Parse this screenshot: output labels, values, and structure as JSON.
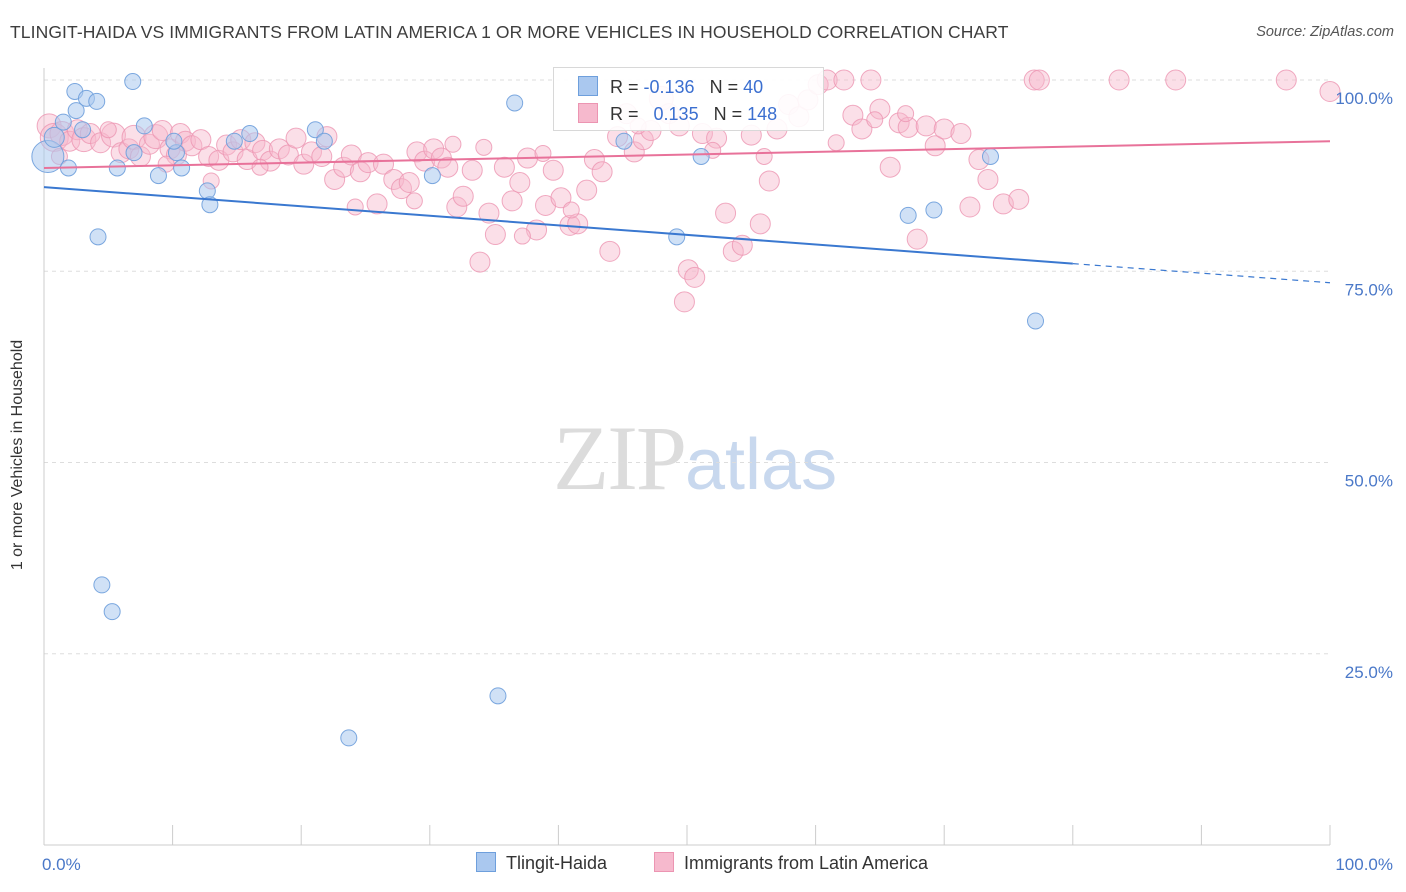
{
  "header": {
    "title": "TLINGIT-HAIDA VS IMMIGRANTS FROM LATIN AMERICA 1 OR MORE VEHICLES IN HOUSEHOLD CORRELATION CHART",
    "source": "Source: ZipAtlas.com"
  },
  "watermark": {
    "zip": "ZIP",
    "atlas": "atlas"
  },
  "legend": {
    "blue": {
      "r_label": "R = ",
      "r_value": "-0.136",
      "n_label": "N = ",
      "n_value": "40"
    },
    "pink": {
      "r_label": "R = ",
      "r_value": "0.135",
      "n_label": "N = ",
      "n_value": "148"
    }
  },
  "bottom_legend": {
    "blue": "Tlingit-Haida",
    "pink": "Immigrants from Latin America"
  },
  "colors": {
    "blue_fill": "#aac8ef",
    "blue_stroke": "#6e9fdc",
    "blue_line": "#3a78d0",
    "pink_fill": "#f6b9cd",
    "pink_stroke": "#ec95b2",
    "pink_line": "#e8729a",
    "grid": "#dddddd",
    "axis_text": "#4a78c8"
  },
  "chart_data": {
    "type": "scatter",
    "title": "TLINGIT-HAIDA VS IMMIGRANTS FROM LATIN AMERICA 1 OR MORE VEHICLES IN HOUSEHOLD CORRELATION CHART",
    "xlabel": "",
    "ylabel": "1 or more Vehicles in Household",
    "xlim": [
      0,
      100
    ],
    "ylim": [
      0,
      103
    ],
    "x_tick_labels": [
      "0.0%",
      "100.0%"
    ],
    "y_ticks": [
      25,
      50,
      75,
      100
    ],
    "y_tick_labels": [
      "25.0%",
      "50.0%",
      "75.0%",
      "100.0%"
    ],
    "grid": true,
    "series": [
      {
        "name": "Tlingit-Haida",
        "r": -0.136,
        "n": 40,
        "trend": {
          "x0": 0,
          "y0": 86.0,
          "x1": 80,
          "y1": 76.0,
          "dashed_to_x": 100,
          "dashed_to_y": 73.5
        },
        "points": [
          [
            0.3,
            90.0,
            16
          ],
          [
            0.8,
            92.5,
            10
          ],
          [
            1.5,
            94.5,
            8
          ],
          [
            1.9,
            88.5,
            8
          ],
          [
            2.4,
            98.5,
            8
          ],
          [
            2.5,
            96.0,
            8
          ],
          [
            3.3,
            97.6,
            8
          ],
          [
            3.0,
            93.5,
            8
          ],
          [
            4.1,
            97.2,
            8
          ],
          [
            6.9,
            99.8,
            8
          ],
          [
            4.2,
            79.5,
            8
          ],
          [
            7.0,
            90.5,
            8
          ],
          [
            5.7,
            88.5,
            8
          ],
          [
            7.8,
            94.0,
            8
          ],
          [
            8.9,
            87.5,
            8
          ],
          [
            10.3,
            90.5,
            8
          ],
          [
            10.7,
            88.5,
            8
          ],
          [
            10.1,
            92.0,
            8
          ],
          [
            12.7,
            85.5,
            8
          ],
          [
            12.9,
            83.7,
            8
          ],
          [
            14.8,
            92.0,
            8
          ],
          [
            16.0,
            93.0,
            8
          ],
          [
            21.1,
            93.5,
            8
          ],
          [
            21.8,
            92.0,
            8
          ],
          [
            30.2,
            87.5,
            8
          ],
          [
            36.6,
            97.0,
            8
          ],
          [
            45.1,
            92.0,
            8
          ],
          [
            49.2,
            79.5,
            8
          ],
          [
            51.1,
            90.0,
            8
          ],
          [
            67.2,
            82.3,
            8
          ],
          [
            69.2,
            83.0,
            8
          ],
          [
            73.6,
            90.0,
            8
          ],
          [
            77.1,
            68.5,
            8
          ],
          [
            4.5,
            34.0,
            8
          ],
          [
            5.3,
            30.5,
            8
          ],
          [
            35.3,
            19.5,
            8
          ],
          [
            23.7,
            14.0,
            8
          ]
        ]
      },
      {
        "name": "Immigrants from Latin America",
        "r": 0.135,
        "n": 148,
        "trend": {
          "x0": 0,
          "y0": 88.5,
          "x1": 100,
          "y1": 92.0
        },
        "points": [
          [
            0.4,
            94.0,
            12
          ],
          [
            0.8,
            92.5,
            14
          ],
          [
            1.4,
            93.0,
            12
          ],
          [
            2.0,
            92.0,
            10
          ],
          [
            2.6,
            93.5,
            10
          ],
          [
            3.1,
            92.2,
            12
          ],
          [
            3.6,
            93.0,
            10
          ],
          [
            4.4,
            91.8,
            10
          ],
          [
            5.4,
            92.8,
            12
          ],
          [
            6.0,
            90.5,
            10
          ],
          [
            6.6,
            91.0,
            10
          ],
          [
            7.0,
            92.5,
            12
          ],
          [
            7.5,
            90.0,
            10
          ],
          [
            8.2,
            91.6,
            10
          ],
          [
            8.7,
            92.6,
            12
          ],
          [
            9.2,
            93.4,
            10
          ],
          [
            9.8,
            91.0,
            10
          ],
          [
            10.3,
            90.2,
            10
          ],
          [
            10.6,
            93.0,
            10
          ],
          [
            11.0,
            92.0,
            10
          ],
          [
            11.5,
            91.4,
            10
          ],
          [
            12.2,
            92.2,
            10
          ],
          [
            12.8,
            90.0,
            10
          ],
          [
            13.6,
            89.5,
            10
          ],
          [
            14.2,
            91.5,
            10
          ],
          [
            14.7,
            90.6,
            10
          ],
          [
            15.3,
            92.2,
            10
          ],
          [
            15.8,
            89.6,
            10
          ],
          [
            16.4,
            91.8,
            10
          ],
          [
            17.0,
            90.8,
            10
          ],
          [
            17.6,
            89.4,
            10
          ],
          [
            18.3,
            91.0,
            10
          ],
          [
            19.0,
            90.2,
            10
          ],
          [
            19.6,
            92.4,
            10
          ],
          [
            20.2,
            89.0,
            10
          ],
          [
            20.8,
            90.6,
            10
          ],
          [
            21.6,
            90.0,
            10
          ],
          [
            22.0,
            92.6,
            10
          ],
          [
            22.6,
            87.0,
            10
          ],
          [
            23.3,
            88.6,
            10
          ],
          [
            23.9,
            90.2,
            10
          ],
          [
            24.6,
            88.0,
            10
          ],
          [
            25.2,
            89.2,
            10
          ],
          [
            25.9,
            83.8,
            10
          ],
          [
            26.4,
            89.0,
            10
          ],
          [
            27.2,
            87.0,
            10
          ],
          [
            27.8,
            85.8,
            10
          ],
          [
            28.4,
            86.6,
            10
          ],
          [
            29.0,
            90.6,
            10
          ],
          [
            29.6,
            89.4,
            10
          ],
          [
            30.3,
            91.0,
            10
          ],
          [
            30.9,
            89.8,
            10
          ],
          [
            31.4,
            88.6,
            10
          ],
          [
            32.1,
            83.4,
            10
          ],
          [
            32.6,
            84.8,
            10
          ],
          [
            33.3,
            88.2,
            10
          ],
          [
            33.9,
            76.2,
            10
          ],
          [
            34.6,
            82.6,
            10
          ],
          [
            35.1,
            79.8,
            10
          ],
          [
            35.8,
            88.6,
            10
          ],
          [
            36.4,
            84.2,
            10
          ],
          [
            37.0,
            86.6,
            10
          ],
          [
            37.6,
            89.8,
            10
          ],
          [
            38.3,
            80.4,
            10
          ],
          [
            39.0,
            83.6,
            10
          ],
          [
            39.6,
            88.2,
            10
          ],
          [
            40.2,
            84.6,
            10
          ],
          [
            40.9,
            81.0,
            10
          ],
          [
            41.5,
            81.2,
            10
          ],
          [
            42.2,
            85.6,
            10
          ],
          [
            42.8,
            89.6,
            10
          ],
          [
            43.4,
            88.0,
            10
          ],
          [
            44.0,
            77.6,
            10
          ],
          [
            44.6,
            92.6,
            10
          ],
          [
            45.3,
            95.6,
            10
          ],
          [
            45.9,
            90.6,
            10
          ],
          [
            46.6,
            92.2,
            10
          ],
          [
            47.2,
            93.4,
            10
          ],
          [
            48.0,
            97.6,
            12
          ],
          [
            48.6,
            95.6,
            10
          ],
          [
            49.4,
            94.0,
            10
          ],
          [
            50.1,
            75.2,
            10
          ],
          [
            50.6,
            74.2,
            10
          ],
          [
            49.8,
            71.0,
            10
          ],
          [
            51.2,
            93.0,
            10
          ],
          [
            52.3,
            92.4,
            10
          ],
          [
            53.0,
            82.6,
            10
          ],
          [
            53.6,
            77.6,
            10
          ],
          [
            54.3,
            78.4,
            10
          ],
          [
            55.0,
            92.8,
            10
          ],
          [
            55.7,
            81.2,
            10
          ],
          [
            56.4,
            86.8,
            10
          ],
          [
            57.0,
            93.6,
            10
          ],
          [
            57.9,
            96.8,
            10
          ],
          [
            58.7,
            95.2,
            10
          ],
          [
            59.4,
            97.4,
            10
          ],
          [
            60.2,
            99.4,
            10
          ],
          [
            60.9,
            100.0,
            10
          ],
          [
            62.2,
            100.0,
            10
          ],
          [
            62.9,
            95.4,
            10
          ],
          [
            63.6,
            93.6,
            10
          ],
          [
            64.3,
            100.0,
            10
          ],
          [
            65.0,
            96.2,
            10
          ],
          [
            65.8,
            88.6,
            10
          ],
          [
            66.5,
            94.4,
            10
          ],
          [
            67.2,
            93.8,
            10
          ],
          [
            67.9,
            79.2,
            10
          ],
          [
            68.6,
            94.0,
            10
          ],
          [
            69.3,
            91.4,
            10
          ],
          [
            70.0,
            93.6,
            10
          ],
          [
            71.3,
            93.0,
            10
          ],
          [
            72.0,
            83.4,
            10
          ],
          [
            72.7,
            89.6,
            10
          ],
          [
            73.4,
            87.0,
            10
          ],
          [
            74.6,
            83.8,
            10
          ],
          [
            75.8,
            84.4,
            10
          ],
          [
            77.0,
            100.0,
            10
          ],
          [
            77.4,
            100.0,
            10
          ],
          [
            83.6,
            100.0,
            10
          ],
          [
            88.0,
            100.0,
            10
          ],
          [
            96.6,
            100.0,
            10
          ],
          [
            100.0,
            98.5,
            10
          ],
          [
            1.2,
            90.0,
            8
          ],
          [
            5.0,
            93.5,
            8
          ],
          [
            9.5,
            89.0,
            8
          ],
          [
            13.0,
            86.8,
            8
          ],
          [
            16.8,
            88.6,
            8
          ],
          [
            28.8,
            84.2,
            8
          ],
          [
            31.8,
            91.6,
            8
          ],
          [
            34.2,
            91.2,
            8
          ],
          [
            37.2,
            79.6,
            8
          ],
          [
            46.2,
            94.0,
            8
          ],
          [
            52.0,
            90.8,
            8
          ],
          [
            61.6,
            91.8,
            8
          ],
          [
            64.6,
            94.8,
            8
          ],
          [
            67.0,
            95.6,
            8
          ],
          [
            24.2,
            83.4,
            8
          ],
          [
            38.8,
            90.4,
            8
          ],
          [
            41.0,
            83.0,
            8
          ],
          [
            56.0,
            90.0,
            8
          ]
        ]
      }
    ]
  }
}
